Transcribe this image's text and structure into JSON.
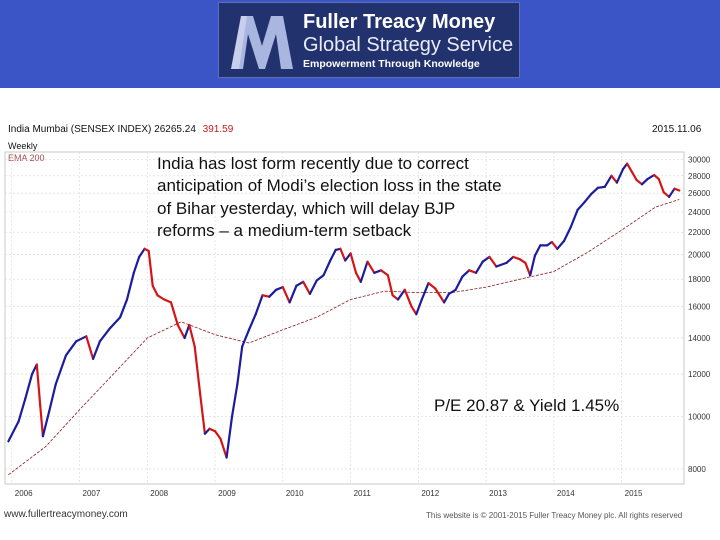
{
  "header": {
    "brand_name": "Fuller Treacy Money",
    "brand_service": "Global Strategy Service",
    "tagline": "Empowerment Through Knowledge",
    "logo_icon": "fuller-treacy-money-logo",
    "colors": {
      "banner": "#3b55c6",
      "logo_box": "#22326e"
    }
  },
  "chart_meta": {
    "title_prefix": "India Mumbai (SENSEX INDEX)",
    "last_value": "26265.24",
    "change": "391.59",
    "date": "2015.11.06",
    "frequency": "Weekly",
    "ema_label": "EMA 200"
  },
  "annotation": {
    "text": "India has lost form recently due to correct anticipation of Modi’s election loss in the state of Bihar yesterday, which will delay BJP reforms – a medium-term setback"
  },
  "valuation": "P/E 20.87 & Yield 1.45%",
  "footer": {
    "website": "www.fullertreacymoney.com",
    "copyright": "This website is © 2001-2015 Fuller Treacy Money plc. All rights reserved"
  },
  "chart_data": {
    "type": "line",
    "title": "India Mumbai (SENSEX INDEX)",
    "xlabel": "",
    "ylabel": "",
    "y_scale": "log",
    "ylim": [
      7500,
      31000
    ],
    "xlim": [
      2005.9,
      2015.92
    ],
    "x_ticks": [
      2006,
      2007,
      2008,
      2009,
      2010,
      2011,
      2012,
      2013,
      2014,
      2015
    ],
    "y_ticks": [
      8000,
      10000,
      12000,
      14000,
      16000,
      18000,
      20000,
      22000,
      24000,
      26000,
      28000,
      30000
    ],
    "grid": true,
    "colors": {
      "up": "#1c1c9e",
      "down": "#d41515",
      "ema": "#8b1a1a"
    },
    "series": [
      {
        "name": "India Mumbai (SENSEX INDEX)",
        "points": [
          [
            2005.95,
            9000
          ],
          [
            2006.1,
            9800
          ],
          [
            2006.2,
            10800
          ],
          [
            2006.3,
            12000
          ],
          [
            2006.37,
            12500
          ],
          [
            2006.42,
            10500
          ],
          [
            2006.46,
            9200
          ],
          [
            2006.55,
            10200
          ],
          [
            2006.65,
            11500
          ],
          [
            2006.8,
            13000
          ],
          [
            2006.95,
            13800
          ],
          [
            2007.1,
            14100
          ],
          [
            2007.2,
            12800
          ],
          [
            2007.3,
            13800
          ],
          [
            2007.45,
            14600
          ],
          [
            2007.6,
            15300
          ],
          [
            2007.7,
            16500
          ],
          [
            2007.8,
            18500
          ],
          [
            2007.88,
            19800
          ],
          [
            2007.96,
            20500
          ],
          [
            2008.02,
            20300
          ],
          [
            2008.08,
            17500
          ],
          [
            2008.15,
            16800
          ],
          [
            2008.25,
            16500
          ],
          [
            2008.35,
            16300
          ],
          [
            2008.45,
            14800
          ],
          [
            2008.55,
            14000
          ],
          [
            2008.62,
            14800
          ],
          [
            2008.7,
            13500
          ],
          [
            2008.78,
            11000
          ],
          [
            2008.85,
            9300
          ],
          [
            2008.92,
            9500
          ],
          [
            2009.0,
            9400
          ],
          [
            2009.08,
            9100
          ],
          [
            2009.17,
            8400
          ],
          [
            2009.25,
            10000
          ],
          [
            2009.33,
            11500
          ],
          [
            2009.4,
            13500
          ],
          [
            2009.5,
            14500
          ],
          [
            2009.6,
            15500
          ],
          [
            2009.7,
            16800
          ],
          [
            2009.8,
            16700
          ],
          [
            2009.9,
            17200
          ],
          [
            2010.0,
            17400
          ],
          [
            2010.1,
            16300
          ],
          [
            2010.2,
            17500
          ],
          [
            2010.3,
            17800
          ],
          [
            2010.4,
            16900
          ],
          [
            2010.5,
            17900
          ],
          [
            2010.6,
            18300
          ],
          [
            2010.7,
            19500
          ],
          [
            2010.78,
            20400
          ],
          [
            2010.85,
            20500
          ],
          [
            2010.92,
            19500
          ],
          [
            2011.0,
            20100
          ],
          [
            2011.08,
            18500
          ],
          [
            2011.15,
            17800
          ],
          [
            2011.25,
            19400
          ],
          [
            2011.35,
            18500
          ],
          [
            2011.45,
            18700
          ],
          [
            2011.55,
            18300
          ],
          [
            2011.62,
            16800
          ],
          [
            2011.7,
            16500
          ],
          [
            2011.8,
            17200
          ],
          [
            2011.9,
            16000
          ],
          [
            2011.97,
            15500
          ],
          [
            2012.05,
            16500
          ],
          [
            2012.15,
            17700
          ],
          [
            2012.25,
            17300
          ],
          [
            2012.38,
            16300
          ],
          [
            2012.45,
            16900
          ],
          [
            2012.55,
            17200
          ],
          [
            2012.65,
            18200
          ],
          [
            2012.75,
            18700
          ],
          [
            2012.85,
            18500
          ],
          [
            2012.95,
            19400
          ],
          [
            2013.05,
            19800
          ],
          [
            2013.15,
            19000
          ],
          [
            2013.3,
            19300
          ],
          [
            2013.4,
            19800
          ],
          [
            2013.5,
            19600
          ],
          [
            2013.58,
            19300
          ],
          [
            2013.65,
            18300
          ],
          [
            2013.72,
            19900
          ],
          [
            2013.8,
            20800
          ],
          [
            2013.9,
            20800
          ],
          [
            2013.97,
            21100
          ],
          [
            2014.05,
            20500
          ],
          [
            2014.15,
            21200
          ],
          [
            2014.25,
            22500
          ],
          [
            2014.35,
            24200
          ],
          [
            2014.45,
            25000
          ],
          [
            2014.55,
            25900
          ],
          [
            2014.65,
            26600
          ],
          [
            2014.75,
            26700
          ],
          [
            2014.85,
            28000
          ],
          [
            2014.93,
            27200
          ],
          [
            2015.02,
            28800
          ],
          [
            2015.08,
            29500
          ],
          [
            2015.15,
            28500
          ],
          [
            2015.22,
            27500
          ],
          [
            2015.3,
            27000
          ],
          [
            2015.38,
            27600
          ],
          [
            2015.48,
            28100
          ],
          [
            2015.55,
            27600
          ],
          [
            2015.62,
            26100
          ],
          [
            2015.7,
            25600
          ],
          [
            2015.78,
            26500
          ],
          [
            2015.85,
            26300
          ]
        ]
      },
      {
        "name": "EMA 200",
        "points": [
          [
            2005.95,
            7800
          ],
          [
            2006.5,
            8800
          ],
          [
            2007.0,
            10300
          ],
          [
            2007.5,
            12000
          ],
          [
            2008.0,
            14000
          ],
          [
            2008.5,
            15000
          ],
          [
            2009.0,
            14200
          ],
          [
            2009.5,
            13700
          ],
          [
            2010.0,
            14500
          ],
          [
            2010.5,
            15300
          ],
          [
            2011.0,
            16500
          ],
          [
            2011.5,
            17100
          ],
          [
            2012.0,
            17000
          ],
          [
            2012.5,
            17000
          ],
          [
            2013.0,
            17400
          ],
          [
            2013.5,
            18000
          ],
          [
            2014.0,
            18600
          ],
          [
            2014.5,
            20200
          ],
          [
            2015.0,
            22200
          ],
          [
            2015.5,
            24500
          ],
          [
            2015.85,
            25300
          ]
        ]
      }
    ]
  }
}
